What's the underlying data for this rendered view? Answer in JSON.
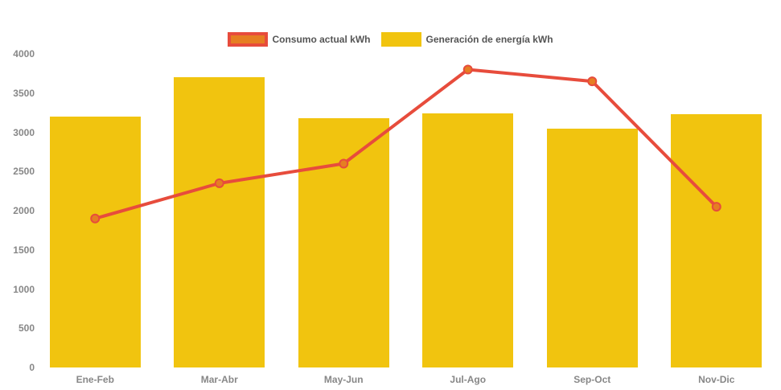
{
  "chart_data": {
    "type": "combo",
    "title": "",
    "xlabel": "",
    "ylabel": "",
    "categories": [
      "Ene-Feb",
      "Mar-Abr",
      "May-Jun",
      "Jul-Ago",
      "Sep-Oct",
      "Nov-Dic"
    ],
    "series": [
      {
        "name": "Consumo actual kWh",
        "type": "line",
        "values": [
          1900,
          2350,
          2600,
          3800,
          3650,
          2050
        ],
        "line_color": "#e74c3c",
        "marker_color": "#e67e22"
      },
      {
        "name": "Generación de energía kWh",
        "type": "bar",
        "values": [
          3200,
          3700,
          3180,
          3240,
          3050,
          3230
        ],
        "color": "#f1c40f"
      }
    ],
    "ylim": [
      0,
      4000
    ],
    "yticks": [
      0,
      500,
      1000,
      1500,
      2000,
      2500,
      3000,
      3500,
      4000
    ],
    "grid": false,
    "legend_position": "top-center",
    "axis_label_color": "#878787",
    "legend_text_color": "#555555",
    "background": "#ffffff"
  }
}
